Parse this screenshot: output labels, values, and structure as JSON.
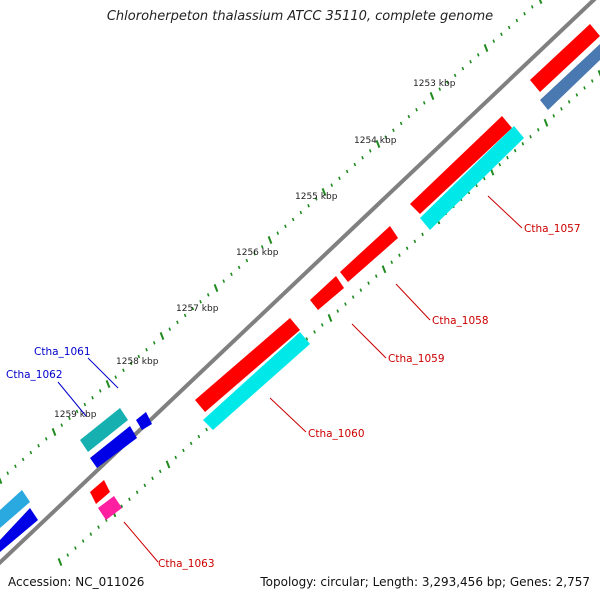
{
  "title": "Chloroherpeton thalassium ATCC 35110, complete genome",
  "footer": {
    "accession": "Accession: NC_011026",
    "summary": "Topology: circular; Length: 3,293,456 bp; Genes: 2,757"
  },
  "colors": {
    "backbone": "#808080",
    "tick": "#1f8a1f",
    "forward_cds": "#ff0000",
    "forward_alt": "#00e0e0",
    "teal": "#16b0b0",
    "blue": "#0000e6",
    "pink": "#ff1fa0",
    "steel": "#4a78b0",
    "sky": "#2aa8e0",
    "label_red": "#cc0000",
    "label_blue": "#0000cc"
  },
  "tick_labels": [
    "1253 kbp",
    "1254 kbp",
    "1255 kbp",
    "1256 kbp",
    "1257 kbp",
    "1258 kbp",
    "1259 kbp"
  ],
  "gene_labels": [
    {
      "text": "Ctha_1057",
      "color": "red"
    },
    {
      "text": "Ctha_1058",
      "color": "red"
    },
    {
      "text": "Ctha_1059",
      "color": "red"
    },
    {
      "text": "Ctha_1060",
      "color": "red"
    },
    {
      "text": "Ctha_1061",
      "color": "blue"
    },
    {
      "text": "Ctha_1062",
      "color": "blue"
    },
    {
      "text": "Ctha_1063",
      "color": "red"
    }
  ]
}
